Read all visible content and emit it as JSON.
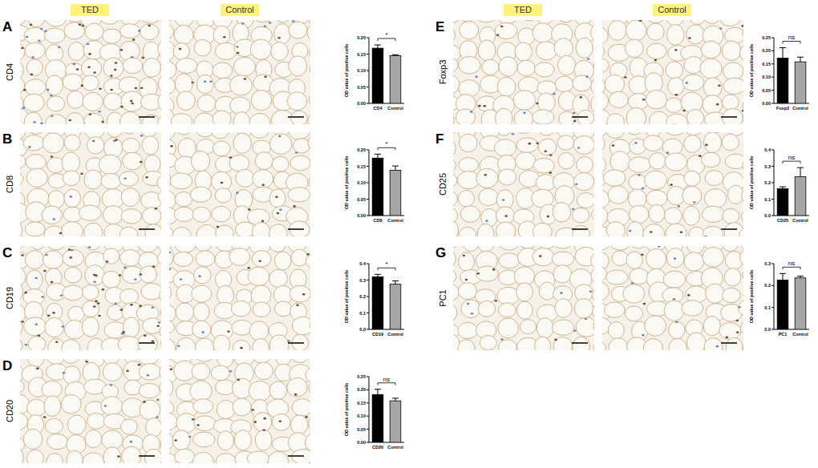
{
  "column_headers": [
    "TED",
    "Control"
  ],
  "chart_data": [
    {
      "type": "bar",
      "panel": "A",
      "row_label": "CD4",
      "categories": [
        "CD4",
        "Control"
      ],
      "values": [
        0.168,
        0.145
      ],
      "errors": [
        0.01,
        0.003
      ],
      "colors": [
        "#000000",
        "#a6a6a6"
      ],
      "ylabel": "OD value of positive cells",
      "ylim": [
        0,
        0.2
      ],
      "yticks": [
        {
          "value": 0,
          "label": "0.00"
        },
        {
          "value": 0.05,
          "label": "0.05"
        },
        {
          "value": 0.1,
          "label": "0.10"
        },
        {
          "value": 0.15,
          "label": "0.15"
        },
        {
          "value": 0.2,
          "label": "0.20"
        }
      ],
      "annotations": [
        "*"
      ]
    },
    {
      "type": "bar",
      "panel": "B",
      "row_label": "CD8",
      "categories": [
        "CD8",
        "Control"
      ],
      "values": [
        0.175,
        0.138
      ],
      "errors": [
        0.012,
        0.013
      ],
      "colors": [
        "#000000",
        "#a6a6a6"
      ],
      "ylabel": "OD value of positive cells",
      "ylim": [
        0,
        0.2
      ],
      "yticks": [
        {
          "value": 0,
          "label": "0.00"
        },
        {
          "value": 0.05,
          "label": "0.05"
        },
        {
          "value": 0.1,
          "label": "0.10"
        },
        {
          "value": 0.15,
          "label": "0.15"
        },
        {
          "value": 0.2,
          "label": "0.20"
        }
      ],
      "annotations": [
        "*"
      ]
    },
    {
      "type": "bar",
      "panel": "C",
      "row_label": "CD19",
      "categories": [
        "CD19",
        "Control"
      ],
      "values": [
        0.32,
        0.275
      ],
      "errors": [
        0.015,
        0.02
      ],
      "colors": [
        "#000000",
        "#a6a6a6"
      ],
      "ylabel": "OD value of positive cells",
      "ylim": [
        0,
        0.4
      ],
      "yticks": [
        {
          "value": 0,
          "label": "0.0"
        },
        0.1,
        0.2,
        0.3,
        0.4
      ],
      "annotations": [
        "*"
      ]
    },
    {
      "type": "bar",
      "panel": "D",
      "row_label": "CD20",
      "categories": [
        "CD20",
        "Control"
      ],
      "values": [
        0.182,
        0.158
      ],
      "errors": [
        0.02,
        0.01
      ],
      "colors": [
        "#000000",
        "#a6a6a6"
      ],
      "ylabel": "OD value of positive cells",
      "ylim": [
        0,
        0.25
      ],
      "yticks": [
        {
          "value": 0,
          "label": "0.00"
        },
        {
          "value": 0.05,
          "label": "0.05"
        },
        {
          "value": 0.1,
          "label": "0.10"
        },
        {
          "value": 0.15,
          "label": "0.15"
        },
        {
          "value": 0.2,
          "label": "0.20"
        },
        0.25
      ],
      "annotations": [
        "ns"
      ]
    },
    {
      "type": "bar",
      "panel": "E",
      "row_label": "Foxp3",
      "categories": [
        "Foxp3",
        "Control"
      ],
      "values": [
        0.172,
        0.158
      ],
      "errors": [
        0.04,
        0.018
      ],
      "colors": [
        "#000000",
        "#a6a6a6"
      ],
      "ylabel": "OD value of positive cells",
      "ylim": [
        0,
        0.25
      ],
      "yticks": [
        {
          "value": 0,
          "label": "0.00"
        },
        {
          "value": 0.05,
          "label": "0.05"
        },
        {
          "value": 0.1,
          "label": "0.10"
        },
        {
          "value": 0.15,
          "label": "0.15"
        },
        {
          "value": 0.2,
          "label": "0.20"
        },
        0.25
      ],
      "annotations": [
        "ns"
      ]
    },
    {
      "type": "bar",
      "panel": "F",
      "row_label": "CD25",
      "categories": [
        "CD25",
        "Control"
      ],
      "values": [
        0.163,
        0.237
      ],
      "errors": [
        0.012,
        0.055
      ],
      "colors": [
        "#000000",
        "#a6a6a6"
      ],
      "ylabel": "OD value of positive cells",
      "ylim": [
        0,
        0.4
      ],
      "yticks": [
        {
          "value": 0,
          "label": "0.0"
        },
        0.1,
        0.2,
        0.3,
        0.4
      ],
      "annotations": [
        "ns"
      ]
    },
    {
      "type": "bar",
      "panel": "G",
      "row_label": "PC1",
      "categories": [
        "PC1",
        "Control"
      ],
      "values": [
        0.225,
        0.235
      ],
      "errors": [
        0.03,
        0.008
      ],
      "colors": [
        "#000000",
        "#a6a6a6"
      ],
      "ylabel": "OD value of positive cells",
      "ylim": [
        0,
        0.3
      ],
      "yticks": [
        {
          "value": 0,
          "label": "0.0"
        },
        0.1,
        0.2,
        0.3
      ],
      "annotations": [
        "ns"
      ]
    }
  ]
}
